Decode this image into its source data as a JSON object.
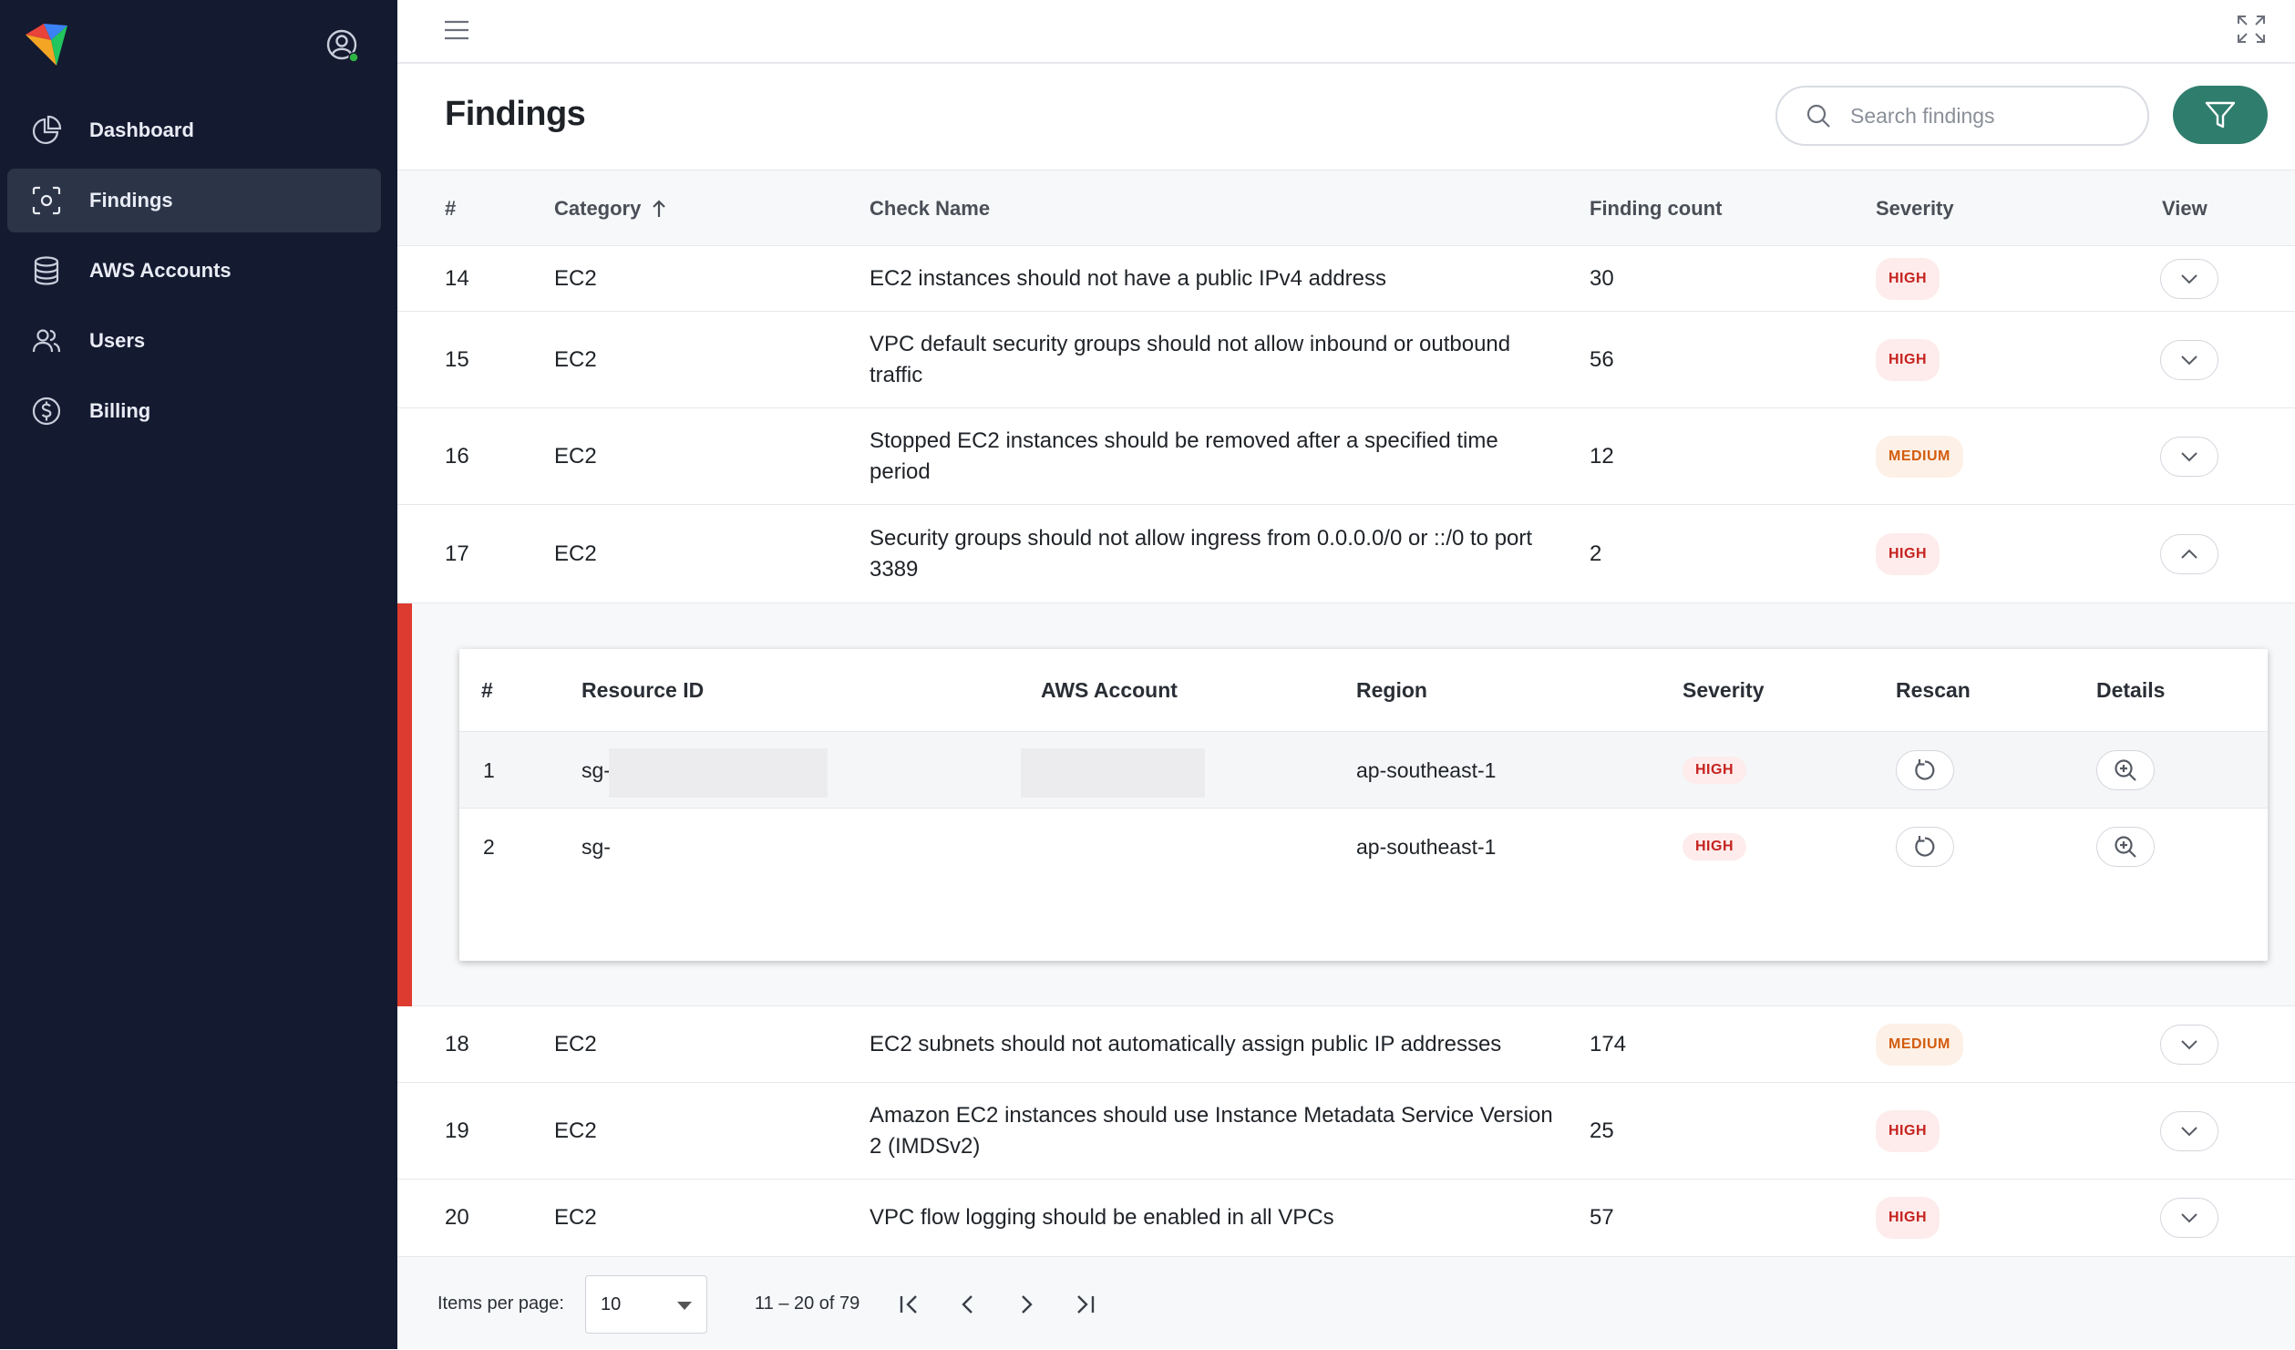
{
  "sidebar": {
    "items": [
      {
        "label": "Dashboard",
        "icon": "pie-chart-icon"
      },
      {
        "label": "Findings",
        "icon": "scan-icon",
        "active": true
      },
      {
        "label": "AWS Accounts",
        "icon": "database-icon"
      },
      {
        "label": "Users",
        "icon": "users-icon"
      },
      {
        "label": "Billing",
        "icon": "dollar-circle-icon"
      }
    ]
  },
  "header": {
    "title": "Findings",
    "search_placeholder": "Search findings"
  },
  "table": {
    "columns": {
      "num": "#",
      "category": "Category",
      "check_name": "Check Name",
      "finding_count": "Finding count",
      "severity": "Severity",
      "view": "View"
    },
    "sort": {
      "column": "category",
      "direction": "asc"
    },
    "rows_before": [
      {
        "num": "14",
        "category": "EC2",
        "check_name": "EC2 instances should not have a public IPv4 address",
        "count": "30",
        "severity": "HIGH"
      },
      {
        "num": "15",
        "category": "EC2",
        "check_name": "VPC default security groups should not allow inbound or outbound traffic",
        "count": "56",
        "severity": "HIGH"
      },
      {
        "num": "16",
        "category": "EC2",
        "check_name": "Stopped EC2 instances should be removed after a specified time period",
        "count": "12",
        "severity": "MEDIUM"
      },
      {
        "num": "17",
        "category": "EC2",
        "check_name": "Security groups should not allow ingress from 0.0.0.0/0 or ::/0 to port 3389",
        "count": "2",
        "severity": "HIGH",
        "expanded": true
      }
    ],
    "rows_after": [
      {
        "num": "18",
        "category": "EC2",
        "check_name": "EC2 subnets should not automatically assign public IP addresses",
        "count": "174",
        "severity": "MEDIUM"
      },
      {
        "num": "19",
        "category": "EC2",
        "check_name": "Amazon EC2 instances should use Instance Metadata Service Version 2 (IMDSv2)",
        "count": "25",
        "severity": "HIGH"
      },
      {
        "num": "20",
        "category": "EC2",
        "check_name": "VPC flow logging should be enabled in all VPCs",
        "count": "57",
        "severity": "HIGH"
      }
    ]
  },
  "subtable": {
    "columns": {
      "num": "#",
      "resource_id": "Resource ID",
      "aws_account": "AWS Account",
      "region": "Region",
      "severity": "Severity",
      "rescan": "Rescan",
      "details": "Details"
    },
    "rows": [
      {
        "num": "1",
        "resource_id": "sg-",
        "region": "ap-southeast-1",
        "severity": "HIGH"
      },
      {
        "num": "2",
        "resource_id": "sg-",
        "region": "ap-southeast-1",
        "severity": "HIGH"
      }
    ]
  },
  "pagination": {
    "items_per_page_label": "Items per page:",
    "items_per_page": "10",
    "range": "11 – 20 of 79"
  }
}
